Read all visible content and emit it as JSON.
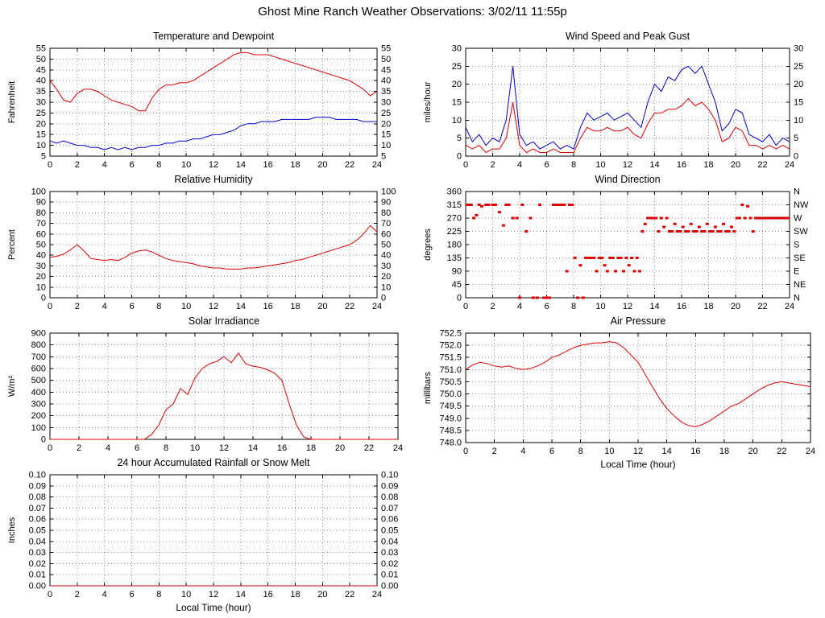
{
  "page_title": "Ghost Mine Ranch Weather Observations: 3/02/11 11:55p",
  "colors": {
    "red": "#dd0000",
    "blue": "#0000cc",
    "grid": "#888888",
    "axis": "#000000",
    "background": "#ffffff"
  },
  "charts": [
    {
      "key": "temperature-dewpoint",
      "title": "Temperature and Dewpoint",
      "type": "line",
      "ylabel": "Fahrenheit",
      "xlabel": "",
      "xlim": [
        0,
        24
      ],
      "xticks": [
        0,
        2,
        4,
        6,
        8,
        10,
        12,
        14,
        16,
        18,
        20,
        22,
        24
      ],
      "ylim": [
        5,
        55
      ],
      "yticks": [
        5,
        10,
        15,
        20,
        25,
        30,
        35,
        40,
        45,
        50,
        55
      ],
      "ytick_labels": [
        "5",
        "10",
        "15",
        "20",
        "25",
        "30",
        "35",
        "40",
        "45",
        "50",
        "55"
      ],
      "right_labels": [
        "5",
        "10",
        "15",
        "20",
        "25",
        "30",
        "35",
        "40",
        "45",
        "50",
        "55"
      ],
      "series": [
        {
          "name": "temperature",
          "color": "red",
          "step": 0.5,
          "y": [
            40,
            36,
            31,
            30,
            34,
            36,
            36,
            35,
            33,
            31,
            30,
            29,
            28,
            26,
            26,
            32,
            36,
            38,
            38,
            39,
            39,
            40,
            42,
            44,
            46,
            48,
            50,
            52,
            53,
            53,
            52,
            52,
            52,
            51,
            50,
            49,
            48,
            47,
            46,
            45,
            44,
            43,
            42,
            41,
            40,
            38,
            36,
            33,
            35
          ]
        },
        {
          "name": "dewpoint",
          "color": "blue",
          "step": 0.5,
          "y": [
            12,
            11,
            12,
            11,
            10,
            10,
            9,
            9,
            8,
            9,
            8,
            9,
            8,
            9,
            9,
            10,
            10,
            11,
            11,
            12,
            12,
            13,
            13,
            14,
            15,
            15,
            16,
            17,
            19,
            20,
            20,
            21,
            21,
            21,
            22,
            22,
            22,
            22,
            22,
            23,
            23,
            23,
            22,
            22,
            22,
            22,
            21,
            21,
            21
          ]
        }
      ]
    },
    {
      "key": "wind-speed-gust",
      "title": "Wind Speed and Peak Gust",
      "type": "line",
      "ylabel": "miles/hour",
      "xlabel": "",
      "xlim": [
        0,
        24
      ],
      "xticks": [
        0,
        2,
        4,
        6,
        8,
        10,
        12,
        14,
        16,
        18,
        20,
        22,
        24
      ],
      "ylim": [
        0,
        30
      ],
      "yticks": [
        0,
        5,
        10,
        15,
        20,
        25,
        30
      ],
      "ytick_labels": [
        "0",
        "5",
        "10",
        "15",
        "20",
        "25",
        "30"
      ],
      "right_labels": [
        "0",
        "5",
        "10",
        "15",
        "20",
        "25",
        "30"
      ],
      "series": [
        {
          "name": "peak-gust",
          "color": "blue",
          "step": 0.5,
          "y": [
            8,
            4,
            6,
            3,
            5,
            4,
            10,
            25,
            6,
            3,
            4,
            2,
            3,
            4,
            2,
            3,
            2,
            8,
            12,
            10,
            11,
            12,
            10,
            11,
            12,
            10,
            8,
            15,
            20,
            18,
            22,
            21,
            24,
            25,
            23,
            25,
            20,
            15,
            7,
            9,
            13,
            12,
            6,
            5,
            4,
            6,
            3,
            5,
            4
          ]
        },
        {
          "name": "wind-speed",
          "color": "red",
          "step": 0.5,
          "y": [
            3,
            2,
            3,
            1,
            2,
            2,
            5,
            15,
            3,
            1,
            2,
            1,
            1,
            2,
            1,
            1,
            1,
            5,
            8,
            7,
            7,
            8,
            7,
            7,
            8,
            6,
            5,
            9,
            12,
            12,
            13,
            13,
            14,
            16,
            14,
            15,
            13,
            10,
            4,
            5,
            8,
            7,
            3,
            3,
            2,
            3,
            2,
            3,
            2
          ]
        }
      ]
    },
    {
      "key": "relative-humidity",
      "title": "Relative Humidity",
      "type": "line",
      "ylabel": "Percent",
      "xlabel": "",
      "xlim": [
        0,
        24
      ],
      "xticks": [
        0,
        2,
        4,
        6,
        8,
        10,
        12,
        14,
        16,
        18,
        20,
        22,
        24
      ],
      "ylim": [
        0,
        100
      ],
      "yticks": [
        0,
        10,
        20,
        30,
        40,
        50,
        60,
        70,
        80,
        90,
        100
      ],
      "ytick_labels": [
        "0",
        "10",
        "20",
        "30",
        "40",
        "50",
        "60",
        "70",
        "80",
        "90",
        "100"
      ],
      "right_labels": [
        "0",
        "10",
        "20",
        "30",
        "40",
        "50",
        "60",
        "70",
        "80",
        "90",
        "100"
      ],
      "series": [
        {
          "name": "humidity",
          "color": "red",
          "step": 0.5,
          "y": [
            38,
            39,
            41,
            45,
            50,
            44,
            37,
            36,
            35,
            36,
            35,
            38,
            42,
            44,
            45,
            43,
            40,
            37,
            35,
            34,
            33,
            32,
            30,
            29,
            28,
            28,
            27,
            27,
            27,
            28,
            28,
            29,
            30,
            31,
            32,
            33,
            35,
            36,
            38,
            40,
            42,
            44,
            46,
            48,
            50,
            54,
            60,
            68,
            62
          ]
        }
      ]
    },
    {
      "key": "wind-direction",
      "title": "Wind Direction",
      "type": "scatter",
      "ylabel": "degrees",
      "xlabel": "",
      "xlim": [
        0,
        24
      ],
      "xticks": [
        0,
        2,
        4,
        6,
        8,
        10,
        12,
        14,
        16,
        18,
        20,
        22,
        24
      ],
      "ylim": [
        0,
        360
      ],
      "yticks": [
        0,
        45,
        90,
        135,
        180,
        225,
        270,
        315,
        360
      ],
      "ytick_labels": [
        "0",
        "45",
        "90",
        "135",
        "180",
        "225",
        "270",
        "315",
        "360"
      ],
      "right_labels": [
        "N",
        "NE",
        "E",
        "SE",
        "S",
        "SW",
        "W",
        "NW",
        "N"
      ],
      "points": [
        [
          0.1,
          315
        ],
        [
          0.2,
          315
        ],
        [
          0.4,
          315
        ],
        [
          0.6,
          270
        ],
        [
          0.8,
          280
        ],
        [
          1.0,
          315
        ],
        [
          1.2,
          310
        ],
        [
          1.5,
          315
        ],
        [
          1.7,
          315
        ],
        [
          2.0,
          315
        ],
        [
          2.2,
          315
        ],
        [
          2.5,
          290
        ],
        [
          2.8,
          245
        ],
        [
          3.0,
          315
        ],
        [
          3.2,
          315
        ],
        [
          3.5,
          270
        ],
        [
          3.8,
          270
        ],
        [
          4.0,
          0
        ],
        [
          4.2,
          315
        ],
        [
          4.5,
          225
        ],
        [
          4.8,
          270
        ],
        [
          5.0,
          0
        ],
        [
          5.3,
          0
        ],
        [
          5.5,
          315
        ],
        [
          5.8,
          0
        ],
        [
          6.0,
          0
        ],
        [
          6.2,
          0
        ],
        [
          6.5,
          315
        ],
        [
          6.7,
          315
        ],
        [
          6.9,
          315
        ],
        [
          7.1,
          315
        ],
        [
          7.3,
          315
        ],
        [
          7.5,
          90
        ],
        [
          7.7,
          315
        ],
        [
          7.9,
          315
        ],
        [
          8.1,
          135
        ],
        [
          8.3,
          0
        ],
        [
          8.5,
          110
        ],
        [
          8.7,
          0
        ],
        [
          8.9,
          135
        ],
        [
          9.1,
          135
        ],
        [
          9.3,
          135
        ],
        [
          9.5,
          135
        ],
        [
          9.7,
          90
        ],
        [
          9.9,
          135
        ],
        [
          10.1,
          135
        ],
        [
          10.3,
          110
        ],
        [
          10.5,
          90
        ],
        [
          10.7,
          135
        ],
        [
          10.9,
          135
        ],
        [
          11.1,
          90
        ],
        [
          11.3,
          135
        ],
        [
          11.5,
          135
        ],
        [
          11.7,
          90
        ],
        [
          11.9,
          135
        ],
        [
          12.1,
          110
        ],
        [
          12.3,
          135
        ],
        [
          12.5,
          90
        ],
        [
          12.7,
          135
        ],
        [
          12.9,
          90
        ],
        [
          13.1,
          225
        ],
        [
          13.3,
          250
        ],
        [
          13.5,
          270
        ],
        [
          13.7,
          270
        ],
        [
          13.9,
          270
        ],
        [
          14.1,
          270
        ],
        [
          14.3,
          225
        ],
        [
          14.5,
          270
        ],
        [
          14.7,
          240
        ],
        [
          14.9,
          270
        ],
        [
          15.1,
          225
        ],
        [
          15.3,
          225
        ],
        [
          15.5,
          250
        ],
        [
          15.7,
          225
        ],
        [
          15.9,
          225
        ],
        [
          16.1,
          240
        ],
        [
          16.3,
          225
        ],
        [
          16.5,
          225
        ],
        [
          16.7,
          250
        ],
        [
          16.9,
          225
        ],
        [
          17.1,
          225
        ],
        [
          17.3,
          240
        ],
        [
          17.5,
          225
        ],
        [
          17.7,
          225
        ],
        [
          17.9,
          250
        ],
        [
          18.1,
          225
        ],
        [
          18.3,
          225
        ],
        [
          18.5,
          240
        ],
        [
          18.7,
          225
        ],
        [
          18.9,
          225
        ],
        [
          19.1,
          250
        ],
        [
          19.3,
          225
        ],
        [
          19.5,
          225
        ],
        [
          19.7,
          240
        ],
        [
          19.9,
          225
        ],
        [
          20.1,
          270
        ],
        [
          20.3,
          270
        ],
        [
          20.5,
          315
        ],
        [
          20.7,
          270
        ],
        [
          20.9,
          310
        ],
        [
          21.1,
          270
        ],
        [
          21.3,
          225
        ],
        [
          21.5,
          270
        ],
        [
          21.7,
          270
        ],
        [
          21.9,
          270
        ],
        [
          22.1,
          270
        ],
        [
          22.3,
          270
        ],
        [
          22.5,
          270
        ],
        [
          22.7,
          270
        ],
        [
          22.9,
          270
        ],
        [
          23.1,
          270
        ],
        [
          23.3,
          270
        ],
        [
          23.5,
          270
        ],
        [
          23.7,
          270
        ],
        [
          23.9,
          270
        ]
      ]
    },
    {
      "key": "solar-irradiance",
      "title": "Solar Irradiance",
      "type": "line",
      "ylabel": "W/m²",
      "xlabel": "",
      "xlim": [
        0,
        24
      ],
      "xticks": [
        0,
        2,
        4,
        6,
        8,
        10,
        12,
        14,
        16,
        18,
        20,
        22,
        24
      ],
      "ylim": [
        0,
        900
      ],
      "yticks": [
        0,
        100,
        200,
        300,
        400,
        500,
        600,
        700,
        800,
        900
      ],
      "ytick_labels": [
        "0",
        "100",
        "200",
        "300",
        "400",
        "500",
        "600",
        "700",
        "800",
        "900"
      ],
      "series": [
        {
          "name": "irradiance",
          "color": "red",
          "step": 0.5,
          "y": [
            0,
            0,
            0,
            0,
            0,
            0,
            0,
            0,
            0,
            0,
            0,
            0,
            0,
            0,
            40,
            120,
            250,
            300,
            430,
            380,
            520,
            600,
            640,
            660,
            700,
            650,
            730,
            640,
            620,
            610,
            590,
            560,
            500,
            300,
            120,
            20,
            0,
            0,
            0,
            0,
            0,
            0,
            0,
            0,
            0,
            0,
            0,
            0,
            0
          ]
        }
      ]
    },
    {
      "key": "air-pressure",
      "title": "Air Pressure",
      "type": "line",
      "ylabel": "millibars",
      "xlabel": "Local Time (hour)",
      "xlim": [
        0,
        24
      ],
      "xticks": [
        0,
        2,
        4,
        6,
        8,
        10,
        12,
        14,
        16,
        18,
        20,
        22,
        24
      ],
      "ylim": [
        748.0,
        752.5
      ],
      "yticks": [
        748.0,
        748.5,
        749.0,
        749.5,
        750.0,
        750.5,
        751.0,
        751.5,
        752.0,
        752.5
      ],
      "ytick_labels": [
        "748.0",
        "748.5",
        "749.0",
        "749.5",
        "750.0",
        "750.5",
        "751.0",
        "751.5",
        "752.0",
        "752.5"
      ],
      "series": [
        {
          "name": "pressure",
          "color": "red",
          "step": 0.5,
          "y": [
            751.0,
            751.2,
            751.3,
            751.25,
            751.15,
            751.1,
            751.15,
            751.05,
            751.0,
            751.05,
            751.15,
            751.3,
            751.5,
            751.6,
            751.75,
            751.9,
            752.0,
            752.05,
            752.1,
            752.1,
            752.15,
            752.1,
            751.9,
            751.6,
            751.3,
            750.8,
            750.3,
            749.8,
            749.4,
            749.1,
            748.85,
            748.7,
            748.65,
            748.75,
            748.9,
            749.1,
            749.3,
            749.5,
            749.6,
            749.8,
            750.0,
            750.2,
            750.35,
            750.45,
            750.5,
            750.45,
            750.4,
            750.35,
            750.3
          ]
        }
      ]
    },
    {
      "key": "rainfall",
      "title": "24 hour Accumulated Rainfall or Snow Melt",
      "type": "line",
      "ylabel": "Inches",
      "xlabel": "Local Time (hour)",
      "xlim": [
        0,
        24
      ],
      "xticks": [
        0,
        2,
        4,
        6,
        8,
        10,
        12,
        14,
        16,
        18,
        20,
        22,
        24
      ],
      "ylim": [
        0.0,
        0.1
      ],
      "yticks": [
        0.0,
        0.01,
        0.02,
        0.03,
        0.04,
        0.05,
        0.06,
        0.07,
        0.08,
        0.09,
        0.1
      ],
      "ytick_labels": [
        "0.00",
        "0.01",
        "0.02",
        "0.03",
        "0.04",
        "0.05",
        "0.06",
        "0.07",
        "0.08",
        "0.09",
        "0.10"
      ],
      "right_labels": [
        "0.00",
        "0.01",
        "0.02",
        "0.03",
        "0.04",
        "0.05",
        "0.06",
        "0.07",
        "0.08",
        "0.09",
        "0.10"
      ],
      "series": [
        {
          "name": "rainfall",
          "color": "red",
          "step": 24,
          "y": [
            0,
            0
          ]
        }
      ]
    }
  ]
}
